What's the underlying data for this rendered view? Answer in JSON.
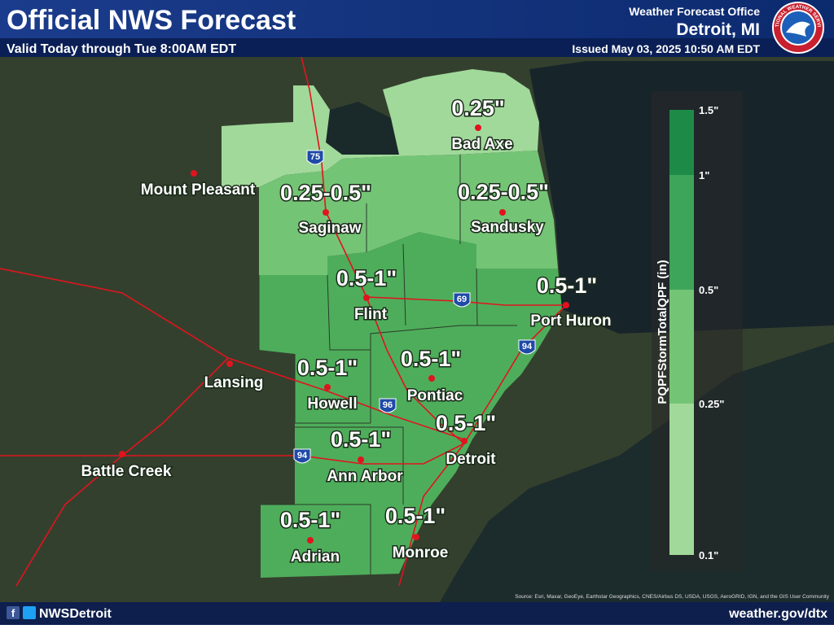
{
  "header": {
    "title": "Official NWS Forecast",
    "subtitle": "Valid Today through Tue 8:00AM EDT",
    "office_label": "Weather Forecast Office",
    "office_city": "Detroit, MI",
    "issued": "Issued May 03, 2025 10:50 AM EDT",
    "logo_text": "NATIONAL WEATHER SERVICE"
  },
  "cities": [
    "Bad Axe",
    "Mount Pleasant",
    "Saginaw",
    "Sandusky",
    "Flint",
    "Port Huron",
    "Lansing",
    "Howell",
    "Pontiac",
    "Detroit",
    "Battle Creek",
    "Ann Arbor",
    "Adrian",
    "Monroe"
  ],
  "amounts": [
    "0.25\"",
    "0.25-0.5\"",
    "0.25-0.5\"",
    "0.5-1\"",
    "0.5-1\"",
    "0.5-1\"",
    "0.5-1\"",
    "0.5-1\"",
    "0.5-1\"",
    "0.5-1\"",
    "0.5-1\""
  ],
  "shields": [
    "75",
    "69",
    "94",
    "96",
    "94"
  ],
  "legend": {
    "title": "PQPFStormTotalQPF (in)",
    "ticks": [
      "1.5\"",
      "1\"",
      "0.5\"",
      "0.25\"",
      "0.1\""
    ]
  },
  "attribution": "Source: Esri, Maxar, GeoEye, Earthstar Geographics, CNES/Airbus DS, USDA, USGS, AeroGRID, IGN, and the GIS User Community",
  "footer": {
    "handle": "NWSDetroit",
    "url": "weather.gov/dtx"
  }
}
